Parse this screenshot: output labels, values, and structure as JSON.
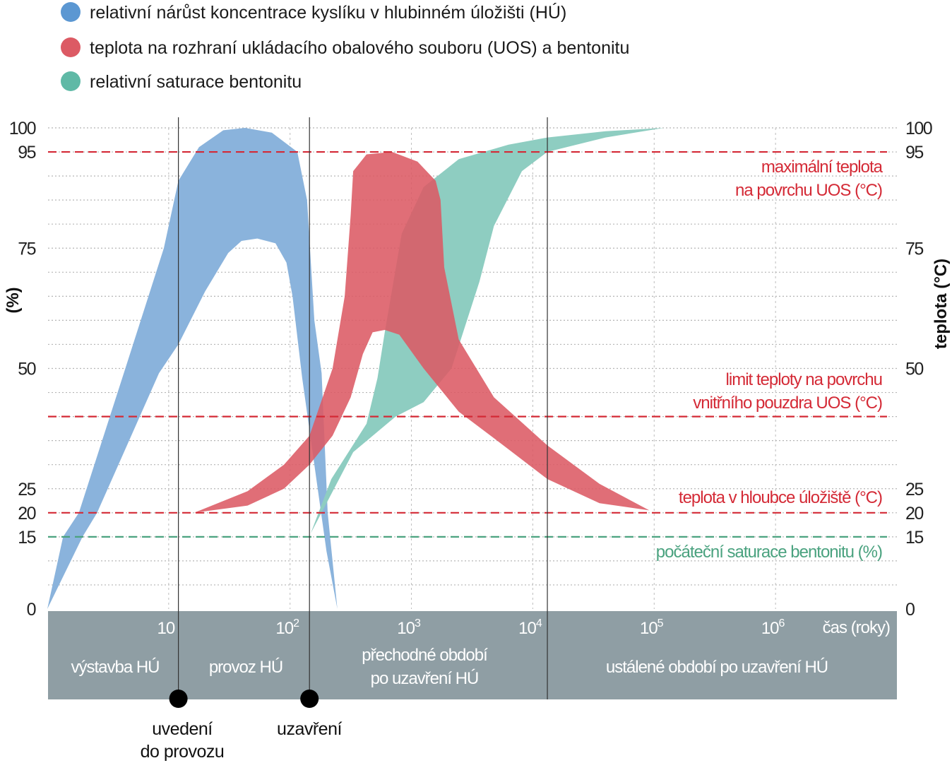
{
  "legend": [
    {
      "label": "relativní nárůst koncentrace kyslíku v hlubinném úložišti (HÚ)",
      "color": "#5b97d2"
    },
    {
      "label": "teplota na rozhraní ukládacího obalového souboru (UOS) a bentonitu",
      "color": "#dc5a64"
    },
    {
      "label": "relativní saturace bentonitu",
      "color": "#5fb9a6"
    }
  ],
  "chart_data": {
    "type": "area",
    "xscale": "log10",
    "xlim_log10": [
      0,
      7
    ],
    "ylim": [
      0,
      100
    ],
    "ylabel_left": "(%)",
    "ylabel_right": "teplota (°C)",
    "xlabel": "čas (roky)",
    "yticks": [
      "100",
      "95",
      "75",
      "50",
      "25",
      "20",
      "15",
      "0"
    ],
    "ytick_values": [
      100,
      95,
      75,
      50,
      25,
      20,
      15,
      0
    ],
    "xticks": [
      {
        "base": "10",
        "exp": "",
        "log10": 1
      },
      {
        "base": "10",
        "exp": "2",
        "log10": 2
      },
      {
        "base": "10",
        "exp": "3",
        "log10": 3
      },
      {
        "base": "10",
        "exp": "4",
        "log10": 4
      },
      {
        "base": "10",
        "exp": "5",
        "log10": 5
      },
      {
        "base": "10",
        "exp": "6",
        "log10": 6
      }
    ],
    "grid": true,
    "series": [
      {
        "name": "oxygen",
        "color": "#8ab3dc",
        "upper": [
          [
            0,
            0
          ],
          [
            0.13,
            15
          ],
          [
            0.26,
            20
          ],
          [
            0.63,
            49
          ],
          [
            0.96,
            75
          ],
          [
            1.08,
            89
          ],
          [
            1.25,
            96
          ],
          [
            1.45,
            99.5
          ],
          [
            1.63,
            100
          ],
          [
            1.85,
            99
          ],
          [
            2.06,
            95
          ],
          [
            2.14,
            85
          ],
          [
            2.2,
            60
          ],
          [
            2.26,
            49
          ],
          [
            2.31,
            20
          ],
          [
            2.39,
            0
          ]
        ],
        "lower": [
          [
            0,
            0
          ],
          [
            0.29,
            15
          ],
          [
            0.41,
            20
          ],
          [
            0.92,
            49
          ],
          [
            1.08,
            55
          ],
          [
            1.3,
            66
          ],
          [
            1.49,
            74
          ],
          [
            1.6,
            76.5
          ],
          [
            1.73,
            77
          ],
          [
            1.88,
            76
          ],
          [
            1.97,
            72
          ],
          [
            2.02,
            65
          ],
          [
            2.1,
            48
          ],
          [
            2.2,
            30
          ],
          [
            2.3,
            12
          ],
          [
            2.39,
            0
          ]
        ]
      },
      {
        "name": "temperature",
        "color": "#dc5a64",
        "upper": [
          [
            1.21,
            20
          ],
          [
            1.65,
            24.5
          ],
          [
            1.95,
            30
          ],
          [
            2.16,
            36
          ],
          [
            2.35,
            50
          ],
          [
            2.45,
            65
          ],
          [
            2.5,
            82
          ],
          [
            2.52,
            91
          ],
          [
            2.63,
            94.5
          ],
          [
            2.84,
            95
          ],
          [
            3.05,
            93
          ],
          [
            3.2,
            89
          ],
          [
            3.24,
            85
          ],
          [
            3.27,
            71
          ],
          [
            3.39,
            56
          ],
          [
            3.68,
            44
          ],
          [
            4.12,
            34
          ],
          [
            4.55,
            26
          ],
          [
            4.96,
            20.5
          ]
        ],
        "lower": [
          [
            1.21,
            20
          ],
          [
            1.65,
            21.5
          ],
          [
            1.95,
            25
          ],
          [
            2.16,
            30
          ],
          [
            2.35,
            36
          ],
          [
            2.5,
            44
          ],
          [
            2.6,
            53
          ],
          [
            2.68,
            57.5
          ],
          [
            2.78,
            58
          ],
          [
            2.9,
            57
          ],
          [
            3.1,
            50
          ],
          [
            3.39,
            41
          ],
          [
            3.68,
            35.5
          ],
          [
            4.12,
            27
          ],
          [
            4.55,
            22
          ],
          [
            4.96,
            20.5
          ]
        ]
      },
      {
        "name": "bentonite-saturation",
        "color": "#8ecdc1",
        "upper": [
          [
            2.17,
            15.7
          ],
          [
            2.34,
            27
          ],
          [
            2.63,
            38.5
          ],
          [
            2.72,
            48
          ],
          [
            2.78,
            57.5
          ],
          [
            2.92,
            78
          ],
          [
            3.1,
            87.7
          ],
          [
            3.39,
            93.5
          ],
          [
            3.8,
            96.5
          ],
          [
            4.12,
            98
          ],
          [
            4.6,
            99.3
          ],
          [
            5.08,
            100
          ]
        ],
        "lower": [
          [
            2.17,
            15.7
          ],
          [
            2.52,
            32.6
          ],
          [
            2.87,
            40
          ],
          [
            3.1,
            43
          ],
          [
            3.33,
            50
          ],
          [
            3.56,
            68
          ],
          [
            3.68,
            79.6
          ],
          [
            3.91,
            91
          ],
          [
            4.12,
            95
          ],
          [
            4.6,
            98
          ],
          [
            5.08,
            100
          ]
        ]
      }
    ],
    "reference_lines": [
      {
        "value": 95,
        "color": "#d42a36",
        "label_lines": [
          "maximální teplota",
          "na povrchu UOS (°C)"
        ]
      },
      {
        "value": 40,
        "color": "#d42a36",
        "label_lines": [
          "limit teploty na povrchu",
          "vnitřního pouzdra UOS (°C)"
        ]
      },
      {
        "value": 20,
        "color": "#d42a36",
        "label_lines": [
          "teplota v hloubce úložiště (°C)"
        ]
      },
      {
        "value": 15,
        "color": "#4aa27f",
        "label_lines": [
          "počáteční saturace bentonitu (%)"
        ]
      }
    ],
    "milestones": [
      {
        "log10": 1.08,
        "label_lines": [
          "uvedení",
          "do provozu"
        ]
      },
      {
        "log10": 2.16,
        "label_lines": [
          "uzavření"
        ]
      }
    ],
    "period_divider_log10": 4.12,
    "periods": [
      {
        "lines": [
          "výstavba HÚ"
        ]
      },
      {
        "lines": [
          "provoz HÚ"
        ]
      },
      {
        "lines": [
          "přechodné období",
          "po uzavření HÚ"
        ]
      },
      {
        "lines": [
          "ustálené období po uzavření HÚ"
        ]
      }
    ]
  }
}
